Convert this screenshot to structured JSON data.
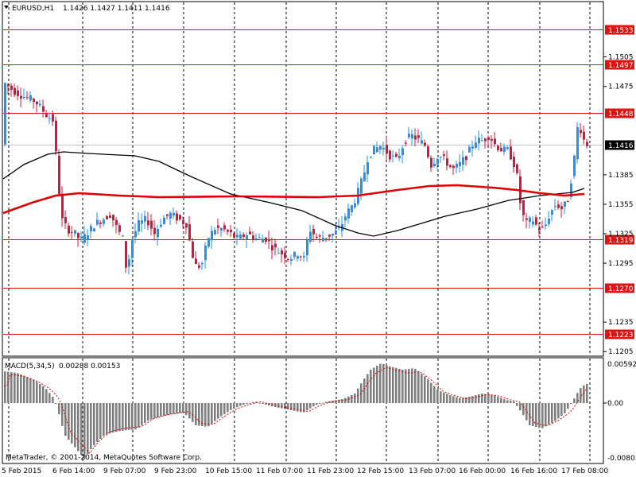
{
  "header": {
    "symbol_label": "EURUSD,H1",
    "ohlc": "1.1426 1.1427 1.1411 1.1416"
  },
  "macd": {
    "label": "MACD(5,34,5)",
    "values": "0.00288 0.00153",
    "axis_labels": [
      "0.00592",
      "0.00",
      "-0.00803"
    ]
  },
  "footer": {
    "copyright": "MetaTrader, © 2001-2014, MetaQuotes Software Corp."
  },
  "colors": {
    "background": "#ffffff",
    "bull": "#1e90ff",
    "bear": "#dc143c",
    "level": "#dc1414",
    "ma_fast": "#000000",
    "ma_slow": "#e00000",
    "macd_hist": "#808080",
    "macd_signal": "#e00000"
  },
  "chart_data": {
    "type": "candlestick",
    "symbol": "EURUSD",
    "timeframe": "H1",
    "y_axis": {
      "min": 1.119,
      "max": 1.1545,
      "ticks": [
        "1.1505",
        "1.1475",
        "1.1385",
        "1.1355",
        "1.1325",
        "1.1295",
        "1.1235",
        "1.1205"
      ]
    },
    "price_levels": [
      {
        "label": "1.1533",
        "value": 1.1533
      },
      {
        "label": "1.1497",
        "value": 1.1497
      },
      {
        "label": "1.1448",
        "value": 1.1448
      },
      {
        "label": "1.1319",
        "value": 1.1319
      },
      {
        "label": "1.1270",
        "value": 1.127
      },
      {
        "label": "1.1223",
        "value": 1.1223
      }
    ],
    "current_price": {
      "label": "1.1416",
      "value": 1.1416
    },
    "x_axis": {
      "labels": [
        "5 Feb 2015",
        "6 Feb 14:00",
        "9 Feb 07:00",
        "9 Feb 23:00",
        "10 Feb 15:00",
        "11 Feb 07:00",
        "11 Feb 23:00",
        "12 Feb 15:00",
        "13 Feb 07:00",
        "16 Feb 00:00",
        "16 Feb 16:00",
        "17 Feb 08:00"
      ]
    },
    "macd_params": "MACD(5,34,5)"
  }
}
